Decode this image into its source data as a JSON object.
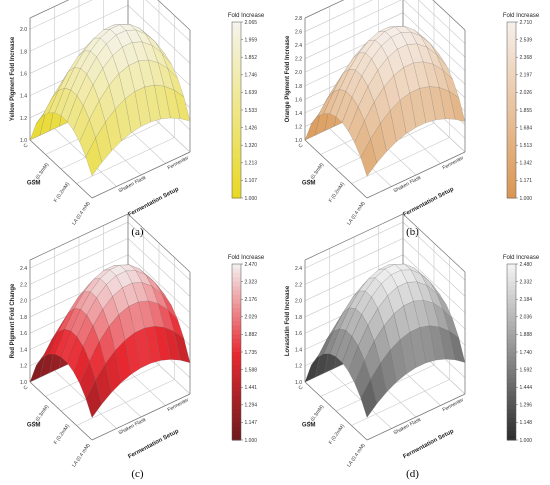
{
  "chart_data": [
    {
      "type": "surface3d",
      "caption": "(a)",
      "zlabel": "Yellow Pigment Fold Increase",
      "xlabel": "GSM",
      "ylabel": "Fermentation Setup",
      "x_ticks": [
        "C",
        "T (0.3mM)",
        "F (0.2mM)",
        "LA (0.4 mM)"
      ],
      "y_ticks": [
        "Shaken Flask",
        "Fermenter"
      ],
      "z_ticks": [
        "1.0",
        "1.2",
        "1.4",
        "1.6",
        "1.8",
        "2.0"
      ],
      "zlim": [
        1.0,
        2.1
      ],
      "colorbar": {
        "title": "Fold Increase",
        "ticks": [
          "2.065",
          "1.959",
          "1.852",
          "1.746",
          "1.639",
          "1.533",
          "1.426",
          "1.320",
          "1.213",
          "1.107",
          "1.000"
        ],
        "low_color": "#e8d820",
        "high_color": "#f5f3ea"
      },
      "peak": 2.065
    },
    {
      "type": "surface3d",
      "caption": "(b)",
      "zlabel": "Orange Pigment Fold Increase",
      "xlabel": "GSM",
      "ylabel": "Fermentation Setup",
      "x_ticks": [
        "C",
        "T (0.3mM)",
        "F (0.2mM)",
        "LA (0.4 mM)"
      ],
      "y_ticks": [
        "Shaken Flask",
        "Fermenter"
      ],
      "z_ticks": [
        "1.0",
        "1.2",
        "1.4",
        "1.6",
        "1.8",
        "2.0",
        "2.2",
        "2.4",
        "2.6",
        "2.8"
      ],
      "zlim": [
        1.0,
        2.8
      ],
      "colorbar": {
        "title": "Fold Increase",
        "ticks": [
          "2.710",
          "2.539",
          "2.368",
          "2.197",
          "2.026",
          "1.855",
          "1.684",
          "1.513",
          "1.342",
          "1.171",
          "1.000"
        ],
        "low_color": "#d99550",
        "high_color": "#f6eee8"
      },
      "peak": 2.71
    },
    {
      "type": "surface3d",
      "caption": "(c)",
      "zlabel": "Red Pigment Fold Change",
      "xlabel": "GSM",
      "ylabel": "Fermentation Setup",
      "x_ticks": [
        "C",
        "T (0.3mM)",
        "F (0.2mM)",
        "LA (0.4 mM)"
      ],
      "y_ticks": [
        "Shaken Flask",
        "Fermenter"
      ],
      "z_ticks": [
        "1.0",
        "1.2",
        "1.4",
        "1.6",
        "1.8",
        "2.0",
        "2.2",
        "2.4"
      ],
      "zlim": [
        1.0,
        2.5
      ],
      "colorbar": {
        "title": "Fold Increase",
        "ticks": [
          "2.470",
          "2.323",
          "2.176",
          "2.029",
          "1.882",
          "1.735",
          "1.588",
          "1.441",
          "1.294",
          "1.147",
          "1.000"
        ],
        "low_color": "#6a1a1c",
        "mid_color": "#e82830",
        "high_color": "#f3ecec"
      },
      "peak": 2.47
    },
    {
      "type": "surface3d",
      "caption": "(d)",
      "zlabel": "Lovastatin Fold Increase",
      "xlabel": "GSM",
      "ylabel": "Fermentation Setup",
      "x_ticks": [
        "C",
        "T (0.3mM)",
        "F (0.2mM)",
        "LA (0.4 mM)"
      ],
      "y_ticks": [
        "Shaken Flask",
        "Fermenter"
      ],
      "z_ticks": [
        "1.0",
        "1.2",
        "1.4",
        "1.6",
        "1.8",
        "2.0",
        "2.2",
        "2.4"
      ],
      "zlim": [
        1.0,
        2.5
      ],
      "colorbar": {
        "title": "Fold Increase",
        "ticks": [
          "2.480",
          "2.332",
          "2.184",
          "2.036",
          "1.888",
          "1.740",
          "1.592",
          "1.444",
          "1.296",
          "1.148",
          "1.000"
        ],
        "low_color": "#2a2a2a",
        "high_color": "#f2f2f2"
      },
      "peak": 2.48
    }
  ]
}
